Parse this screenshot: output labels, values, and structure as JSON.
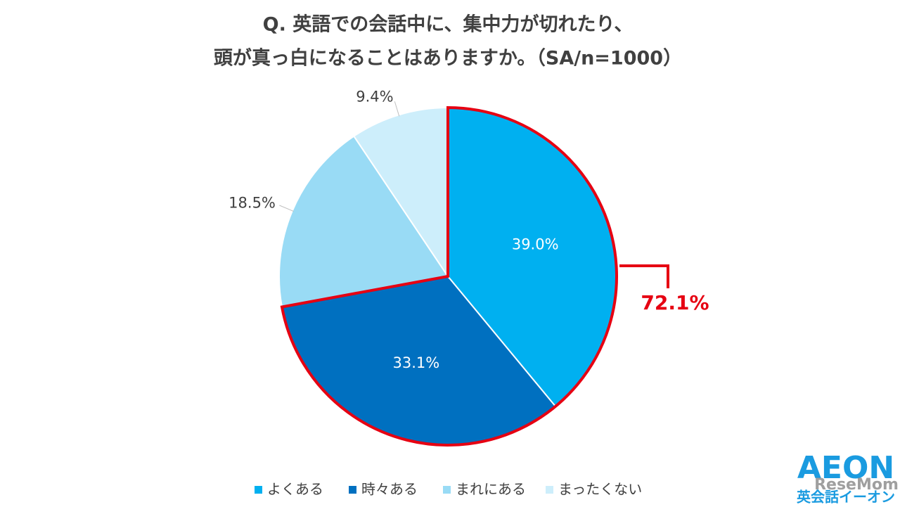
{
  "chart_data": {
    "type": "pie",
    "title": [
      "Q. 英語での会話中に、集中力が切れたり、",
      "頭が真っ白になることはありますか。（SA/n=1000）"
    ],
    "categories": [
      "よくある",
      "時々ある",
      "まれにある",
      "まったくない"
    ],
    "values": [
      39.0,
      33.1,
      18.5,
      9.4
    ],
    "value_labels": [
      "39.0%",
      "33.1%",
      "18.5%",
      "9.4%"
    ],
    "colors": [
      "#00b0f0",
      "#0070c0",
      "#99dbf5",
      "#cdeefb"
    ],
    "label_positions": [
      "inside",
      "inside",
      "outside",
      "outside"
    ],
    "highlight": {
      "label": "72.1%",
      "color": "#e60012",
      "count": 2
    },
    "legend": "bottom"
  },
  "logo": {
    "brand": "AEON",
    "sub": "英会話イーオン"
  },
  "watermark": "ReseMom"
}
